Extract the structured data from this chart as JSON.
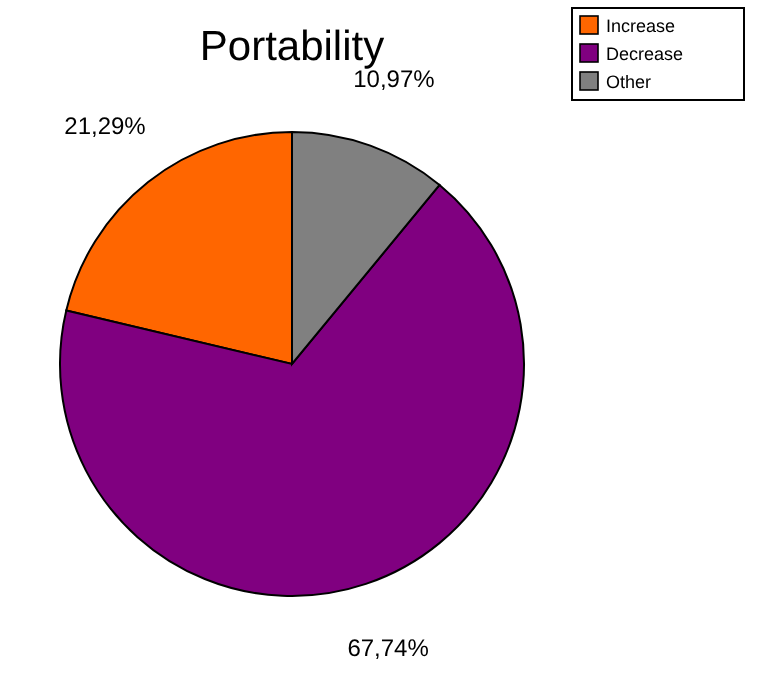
{
  "chart_data": {
    "type": "pie",
    "title": "Portability",
    "categories": [
      "Increase",
      "Decrease",
      "Other"
    ],
    "values": [
      21.29,
      67.74,
      10.97
    ],
    "colors": [
      "#ff6600",
      "#800080",
      "#808080"
    ],
    "value_labels": [
      "21,29%",
      "67,74%",
      "10,97%"
    ],
    "legend": "top right"
  }
}
